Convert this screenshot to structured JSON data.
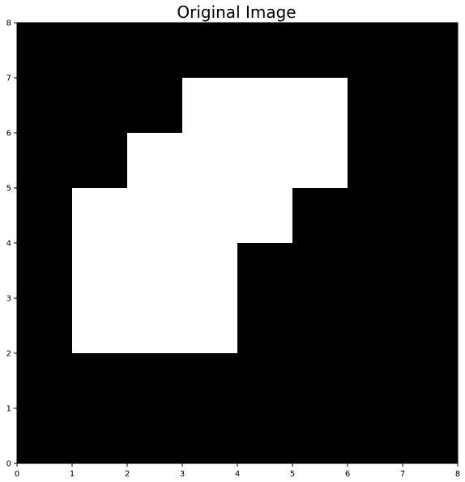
{
  "chart_data": {
    "type": "heatmap",
    "title": "Original Image",
    "xlabel": "",
    "ylabel": "",
    "xlim": [
      0,
      8
    ],
    "ylim": [
      0,
      8
    ],
    "x_ticks": [
      "0",
      "1",
      "2",
      "3",
      "4",
      "5",
      "6",
      "7",
      "8"
    ],
    "y_ticks": [
      "0",
      "1",
      "2",
      "3",
      "4",
      "5",
      "6",
      "7",
      "8"
    ],
    "grid": false,
    "colormap": "gray",
    "background_value": 0,
    "cell_colors": {
      "0": "#000000",
      "1": "#ffffff"
    },
    "rows_top_to_bottom": [
      [
        0,
        0,
        0,
        0,
        0,
        0,
        0,
        0
      ],
      [
        0,
        0,
        0,
        1,
        1,
        1,
        0,
        0
      ],
      [
        0,
        0,
        1,
        1,
        1,
        1,
        0,
        0
      ],
      [
        0,
        1,
        1,
        1,
        1,
        0,
        0,
        0
      ],
      [
        0,
        1,
        1,
        1,
        0,
        0,
        0,
        0
      ],
      [
        0,
        1,
        1,
        1,
        0,
        0,
        0,
        0
      ],
      [
        0,
        0,
        0,
        0,
        0,
        0,
        0,
        0
      ],
      [
        0,
        0,
        0,
        0,
        0,
        0,
        0,
        0
      ]
    ]
  }
}
